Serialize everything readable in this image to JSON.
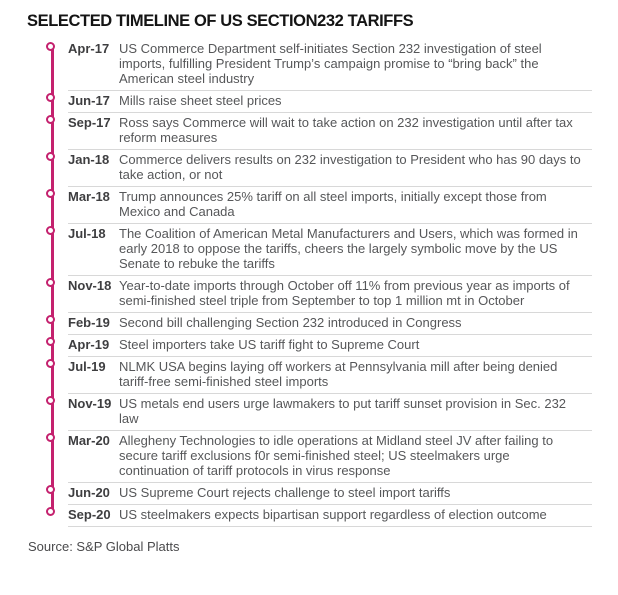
{
  "title": "SELECTED TIMELINE OF US SECTION232 TARIFFS",
  "source": "Source: S&P Global Platts",
  "colors": {
    "accent": "#c4216e",
    "rule": "#d8d8d8",
    "title_text": "#141414",
    "body_text": "#565759"
  },
  "items": [
    {
      "date": "Apr-17",
      "text": "US Commerce Department self-initiates Section 232 investigation of steel imports, fulfilling President Trump’s campaign promise to “bring back” the American steel industry"
    },
    {
      "date": "Jun-17",
      "text": "Mills raise sheet steel prices"
    },
    {
      "date": "Sep-17",
      "text": "Ross says Commerce will wait to take action on 232 investigation until after tax reform measures"
    },
    {
      "date": "Jan-18",
      "text": "Commerce delivers results on 232 investigation to President who has 90 days to take action, or not"
    },
    {
      "date": "Mar-18",
      "text": "Trump announces 25% tariff on all steel imports, initially except those from Mexico and Canada"
    },
    {
      "date": "Jul-18",
      "text": "The Coalition of American Metal Manufacturers and Users, which was formed in early 2018 to oppose the tariffs, cheers the largely symbolic move by the US Senate to rebuke the tariffs"
    },
    {
      "date": "Nov-18",
      "text": "Year-to-date imports through October off 11% from previous year as imports of semi-finished steel triple from September to top 1 million mt in October"
    },
    {
      "date": "Feb-19",
      "text": "Second bill challenging Section 232 introduced in Congress"
    },
    {
      "date": "Apr-19",
      "text": "Steel importers take US tariff fight to Supreme Court"
    },
    {
      "date": "Jul-19",
      "text": "NLMK USA begins laying off workers at Pennsylvania mill after being denied tariff-free semi-finished steel imports"
    },
    {
      "date": "Nov-19",
      "text": "US metals end users urge lawmakers to put tariff sunset provision in Sec. 232 law"
    },
    {
      "date": "Mar-20",
      "text": "Allegheny Technologies to idle operations at Midland steel JV after failing to secure tariff exclusions f0r semi-finished steel; US steelmakers urge continuation of tariff protocols in virus response"
    },
    {
      "date": "Jun-20",
      "text": "US Supreme Court rejects challenge to steel import tariffs"
    },
    {
      "date": "Sep-20",
      "text": "US steelmakers expects bipartisan support regardless of election outcome"
    }
  ]
}
